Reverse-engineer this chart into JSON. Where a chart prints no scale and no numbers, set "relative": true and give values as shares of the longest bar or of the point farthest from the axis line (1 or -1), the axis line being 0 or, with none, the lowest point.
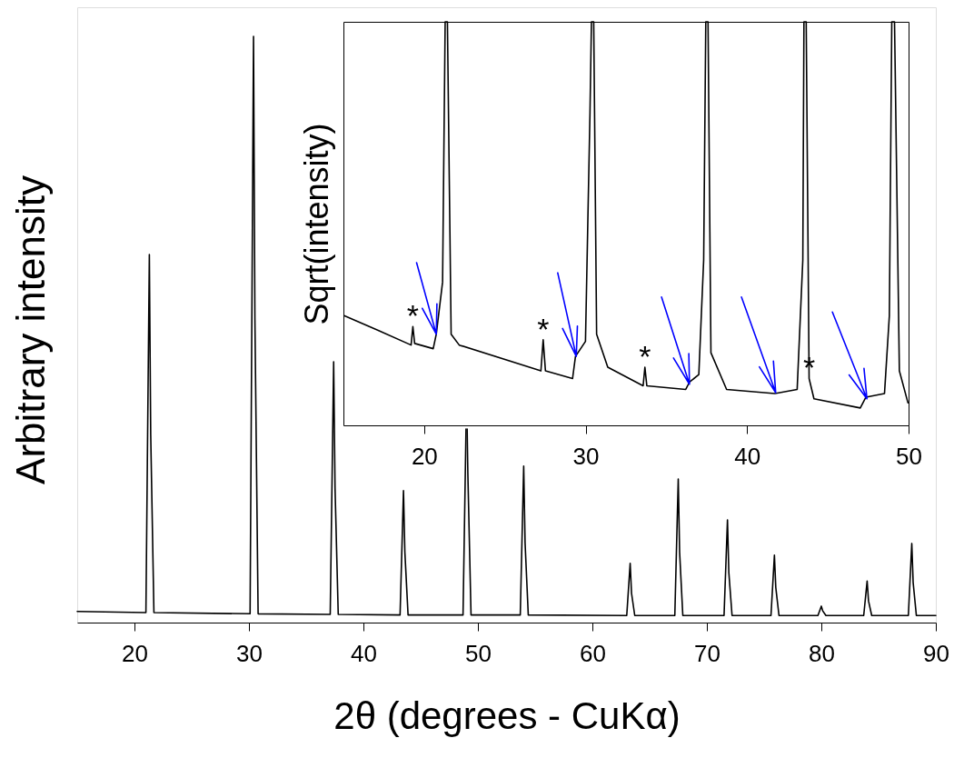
{
  "chart_data": [
    {
      "type": "line",
      "xlabel": "2θ (degrees - CuKα)",
      "ylabel": "Arbitrary intensity",
      "color": "#000000",
      "relative": true,
      "tick_labels": "x",
      "grid": false,
      "xlim": [
        15,
        90
      ],
      "xticks": [
        20,
        30,
        40,
        50,
        60,
        70,
        80,
        90
      ],
      "x": [
        15,
        21.0,
        21.3,
        21.42,
        21.7,
        30.1,
        30.4,
        30.52,
        30.8,
        37.1,
        37.4,
        37.52,
        37.8,
        43.2,
        43.5,
        43.62,
        43.9,
        48.7,
        48.96,
        49.0,
        49.06,
        49.12,
        49.4,
        53.7,
        54.0,
        54.12,
        54.4,
        63.0,
        63.3,
        63.42,
        63.7,
        67.2,
        67.5,
        67.62,
        67.9,
        71.5,
        71.8,
        71.92,
        72.2,
        75.6,
        75.9,
        76.02,
        76.3,
        79.7,
        80.0,
        80.12,
        80.4,
        83.7,
        84.0,
        84.12,
        84.4,
        87.6,
        87.9,
        88.02,
        88.3,
        90
      ],
      "values": [
        0.019,
        0.017,
        0.628,
        0.32,
        0.017,
        0.015,
        1.0,
        0.52,
        0.015,
        0.014,
        0.445,
        0.23,
        0.014,
        0.013,
        0.225,
        0.12,
        0.013,
        0.013,
        0.33,
        null,
        0.33,
        0.256,
        0.013,
        0.013,
        0.267,
        0.136,
        0.013,
        0.012,
        0.101,
        0.05,
        0.012,
        0.012,
        0.245,
        0.12,
        0.012,
        0.012,
        0.175,
        0.085,
        0.012,
        0.012,
        0.115,
        0.06,
        0.012,
        0.012,
        0.028,
        0.02,
        0.012,
        0.012,
        0.071,
        0.037,
        0.012,
        0.012,
        0.135,
        0.068,
        0.012,
        0.012
      ]
    },
    {
      "type": "line",
      "ylabel": "Sqrt(intensity)",
      "relative": true,
      "tick_labels": "x",
      "grid": false,
      "xlim": [
        15,
        50
      ],
      "xticks": [
        20,
        30,
        40,
        50
      ],
      "series": [
        {
          "color": "#000000",
          "x": [
            15.04,
            17.12,
            19.19,
            19.3,
            19.41,
            20.56,
            20.75,
            21.14,
            21.3,
            21.44,
            21.67,
            22.17,
            27.23,
            27.37,
            27.51,
            29.19,
            29.37,
            29.99,
            30.27,
            30.36,
            30.5,
            30.68,
            31.37,
            33.56,
            33.67,
            33.79,
            36.2,
            36.43,
            37.01,
            37.31,
            37.44,
            37.58,
            37.76,
            38.73,
            41.72,
            43.1,
            43.45,
            43.52,
            43.66,
            43.84,
            44.14,
            47.01,
            47.36,
            48.51,
            48.81,
            48.96,
            49.13,
            49.43,
            49.96
          ],
          "values": [
            0.272,
            0.236,
            0.199,
            0.245,
            0.203,
            0.19,
            0.226,
            0.355,
            1.0,
            1.0,
            0.226,
            0.199,
            0.135,
            0.212,
            0.135,
            0.116,
            0.171,
            0.208,
            0.777,
            1.0,
            1.0,
            0.226,
            0.144,
            0.098,
            0.144,
            0.098,
            0.089,
            0.107,
            0.126,
            0.41,
            1.0,
            1.0,
            0.18,
            0.089,
            0.079,
            0.089,
            0.41,
            1.0,
            1.0,
            0.116,
            0.066,
            0.043,
            0.07,
            0.079,
            0.272,
            1.0,
            1.0,
            0.135,
            0.056
          ]
        },
        {
          "type": "line",
          "color": "#0000ff",
          "x": [
            19.53,
            20.75,
            19.88,
            20.75,
            20.79,
            null,
            28.27,
            29.42,
            28.57,
            29.42,
            29.49,
            null,
            34.7,
            36.43,
            35.44,
            36.43,
            36.39,
            null,
            39.65,
            41.77,
            40.76,
            41.77,
            41.63,
            null,
            45.28,
            47.42,
            46.32,
            47.42,
            47.24
          ],
          "values": [
            0.403,
            0.226,
            0.29,
            0.226,
            0.301,
            null,
            0.378,
            0.171,
            0.24,
            0.171,
            0.246,
            null,
            0.318,
            0.102,
            0.167,
            0.102,
            0.178,
            null,
            0.318,
            0.081,
            0.145,
            0.081,
            0.159,
            null,
            0.281,
            0.066,
            0.125,
            0.066,
            0.141
          ]
        }
      ],
      "annotations": [
        {
          "text": "*",
          "x": 19.3,
          "y": 0.245
        },
        {
          "text": "*",
          "x": 27.37,
          "y": 0.212
        },
        {
          "text": "*",
          "x": 33.67,
          "y": 0.144
        },
        {
          "text": "*",
          "x": 43.84,
          "y": 0.116
        }
      ]
    }
  ]
}
